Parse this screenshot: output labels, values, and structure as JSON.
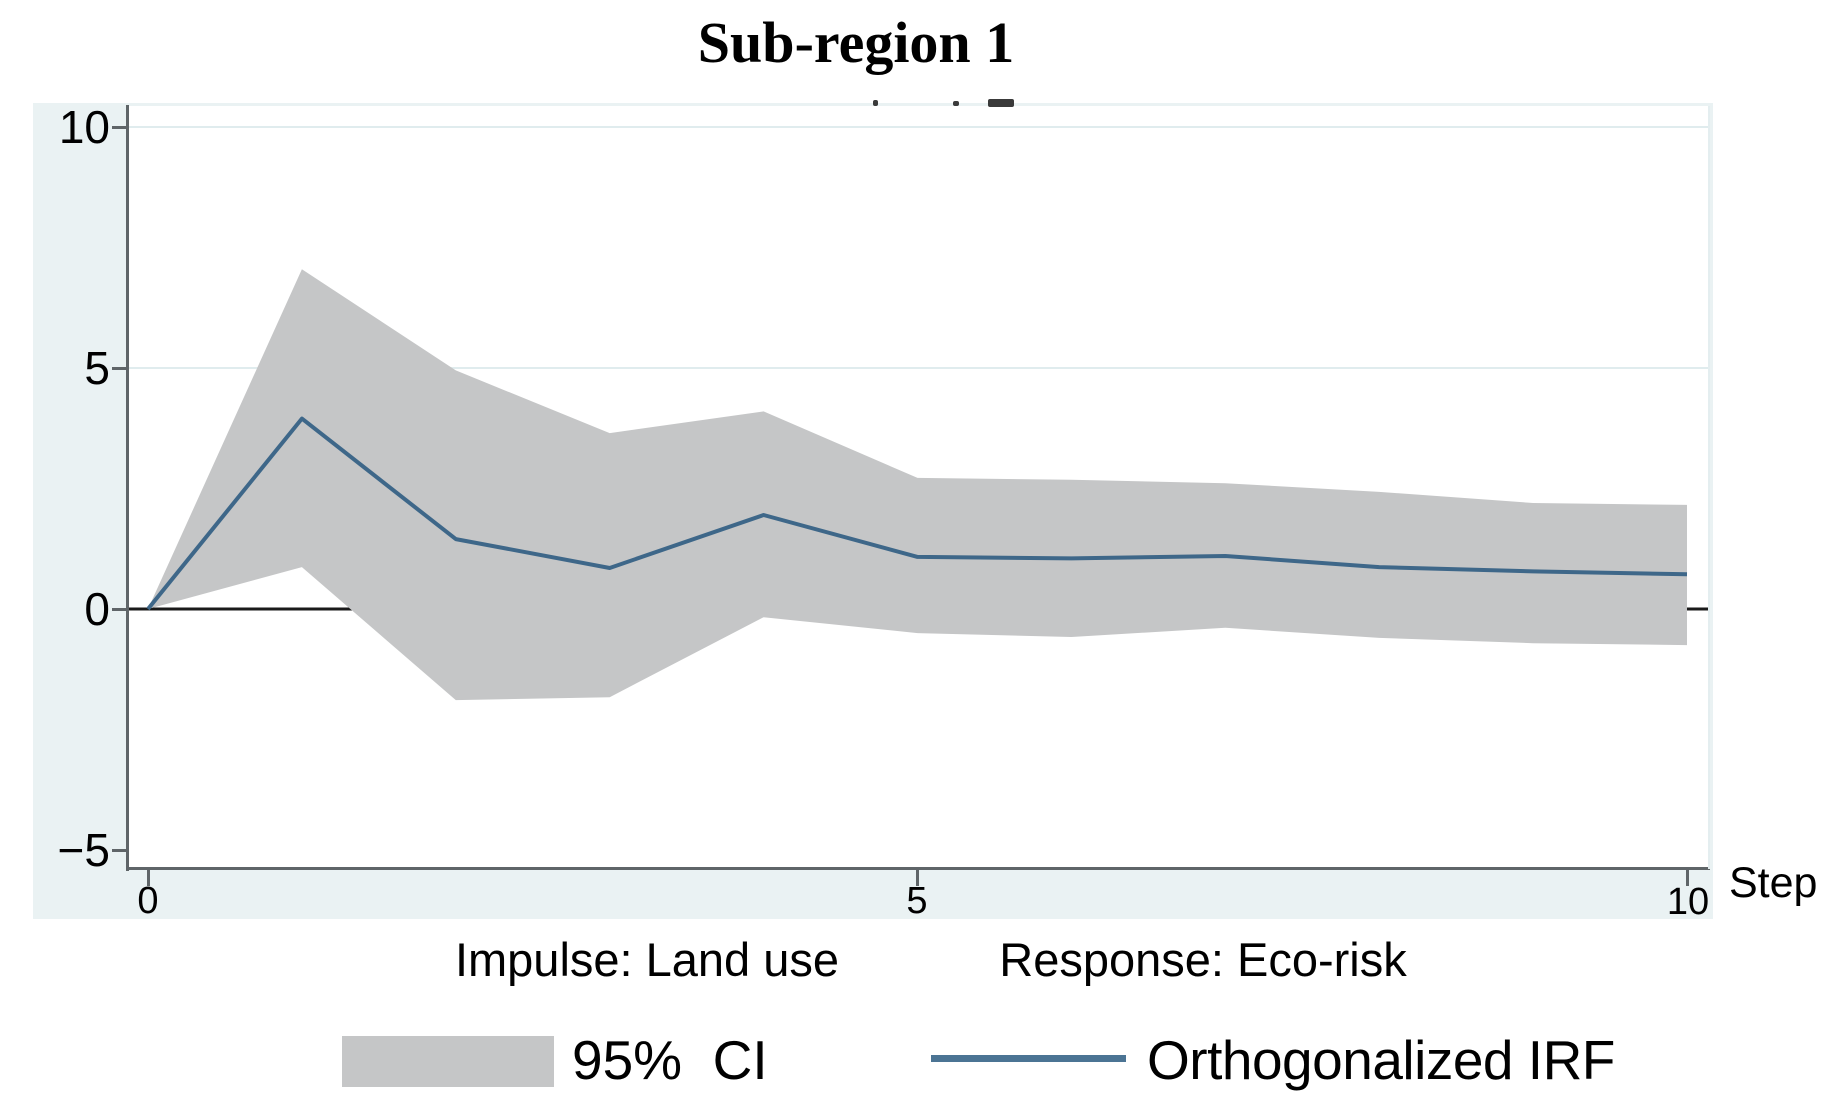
{
  "figure": {
    "title": "Sub-region 1",
    "impulse_label": "Impulse: Land use",
    "response_label": "Response: Eco-risk",
    "x_axis": {
      "label": "Step",
      "tick_labels": [
        "0",
        "5",
        "10"
      ]
    },
    "y_axis": {
      "tick_labels": [
        "10",
        "5",
        "0",
        "−5"
      ]
    },
    "legend": {
      "ci_label": "95%  CI",
      "irf_label": "Orthogonalized IRF"
    }
  },
  "colors": {
    "graph_region_bg": "#eaf2f3",
    "plot_bg": "#ffffff",
    "ci_band": "#c5c6c7",
    "irf_line": "#3e6789",
    "legend_irf_line": "#4b7494",
    "axis": "#5f6568",
    "gridline": "#e0ecee",
    "zero_line": "#1a1a1a",
    "text": "#000000"
  },
  "chart_data": {
    "type": "line",
    "title": "Sub-region 1",
    "xlabel": "Step",
    "ylabel": "",
    "x": [
      0,
      1,
      2,
      3,
      4,
      5,
      6,
      7,
      8,
      9,
      10
    ],
    "series": [
      {
        "name": "Orthogonalized IRF",
        "role": "line",
        "values": [
          0,
          3.95,
          1.45,
          0.85,
          1.95,
          1.08,
          1.05,
          1.1,
          0.87,
          0.78,
          0.72
        ]
      },
      {
        "name": "95% CI upper",
        "role": "band_upper",
        "values": [
          0,
          7.05,
          4.95,
          3.65,
          4.1,
          2.72,
          2.68,
          2.61,
          2.43,
          2.2,
          2.16
        ]
      },
      {
        "name": "95% CI lower",
        "role": "band_lower",
        "values": [
          0,
          0.87,
          -1.89,
          -1.83,
          -0.17,
          -0.5,
          -0.58,
          -0.39,
          -0.6,
          -0.71,
          -0.75
        ]
      }
    ],
    "xticks": [
      0,
      5,
      10
    ],
    "yticks": [
      10,
      5,
      0,
      -5
    ],
    "xlim": [
      -0.13,
      10.15
    ],
    "ylim": [
      -5.39,
      10.44
    ],
    "gridlines_at": [
      5,
      10
    ],
    "zero_line": true,
    "legend_position": "bottom",
    "legend_entries": [
      "95%  CI",
      "Orthogonalized IRF"
    ]
  }
}
